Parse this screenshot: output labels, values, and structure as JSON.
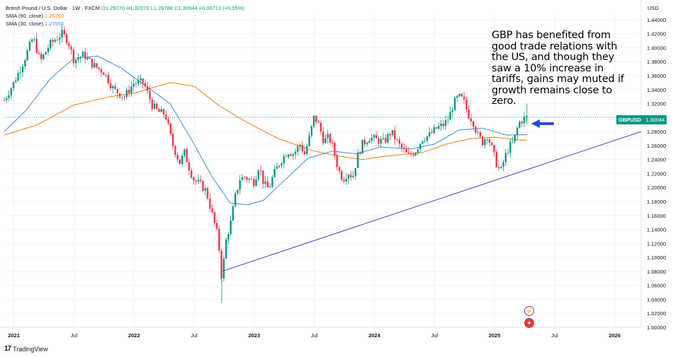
{
  "legend": {
    "title": "British Pound / U.S. Dollar · 1W · FXCM",
    "ohlc": "O1.29270  H1.32070  L1.28788  C1.30044  +0.00713 (+0.55%)",
    "sma90_label": "SMA (90, close)",
    "sma90_value": "1.26760",
    "sma30_label": "SMA (30, close)",
    "sma30_value": "1.27556"
  },
  "currency_label": "USD",
  "annotation": "GBP has benefited from good trade relations with the US, and though they saw a 10% increase in tariffs, gains may muted if growth remains close to zero.",
  "price_tag": {
    "symbol": "GBPUSD",
    "value": "1.30044"
  },
  "branding": "TradingView",
  "colors": {
    "up": "#089981",
    "down": "#f23645",
    "sma90": "#f57c00",
    "sma30": "#3d8fd1",
    "trendline": "#3f3fd6",
    "arrow": "#1f4fe0",
    "grid": "#f0f3fa",
    "axis_text": "#131722"
  },
  "icons": [
    "lightning-icon",
    "us-flag-icon",
    "tradingview-logo-icon"
  ],
  "chart_data": {
    "type": "candlestick",
    "symbol": "GBPUSD",
    "interval": "1W",
    "y_ticks": [
      "1.00000",
      "1.02000",
      "1.04000",
      "1.06000",
      "1.08000",
      "1.10000",
      "1.12000",
      "1.14000",
      "1.16000",
      "1.18000",
      "1.20000",
      "1.22000",
      "1.24000",
      "1.26000",
      "1.28000",
      "1.30000",
      "1.32000",
      "1.34000",
      "1.36000",
      "1.38000",
      "1.40000",
      "1.42000",
      "1.44000"
    ],
    "x_ticks": [
      "2021",
      "Jul",
      "2022",
      "Jul",
      "2023",
      "Jul",
      "2024",
      "Jul",
      "2025",
      "Jul",
      "2026"
    ],
    "ylim": [
      1.0,
      1.45
    ],
    "xlim": [
      2020.92,
      2026.22
    ],
    "grid": true,
    "price_path": [
      [
        2020.92,
        1.325
      ],
      [
        2021.0,
        1.35
      ],
      [
        2021.08,
        1.38
      ],
      [
        2021.16,
        1.415
      ],
      [
        2021.22,
        1.38
      ],
      [
        2021.3,
        1.405
      ],
      [
        2021.4,
        1.42
      ],
      [
        2021.45,
        1.41
      ],
      [
        2021.5,
        1.382
      ],
      [
        2021.58,
        1.39
      ],
      [
        2021.66,
        1.375
      ],
      [
        2021.75,
        1.365
      ],
      [
        2021.83,
        1.34
      ],
      [
        2021.92,
        1.33
      ],
      [
        2022.0,
        1.35
      ],
      [
        2022.08,
        1.35
      ],
      [
        2022.15,
        1.318
      ],
      [
        2022.2,
        1.308
      ],
      [
        2022.26,
        1.305
      ],
      [
        2022.32,
        1.262
      ],
      [
        2022.38,
        1.235
      ],
      [
        2022.42,
        1.25
      ],
      [
        2022.46,
        1.228
      ],
      [
        2022.5,
        1.21
      ],
      [
        2022.55,
        1.205
      ],
      [
        2022.6,
        1.195
      ],
      [
        2022.66,
        1.155
      ],
      [
        2022.7,
        1.128
      ],
      [
        2022.73,
        1.07
      ],
      [
        2022.77,
        1.13
      ],
      [
        2022.8,
        1.145
      ],
      [
        2022.84,
        1.185
      ],
      [
        2022.88,
        1.212
      ],
      [
        2022.92,
        1.215
      ],
      [
        2023.0,
        1.208
      ],
      [
        2023.04,
        1.232
      ],
      [
        2023.08,
        1.205
      ],
      [
        2023.12,
        1.198
      ],
      [
        2023.16,
        1.218
      ],
      [
        2023.22,
        1.238
      ],
      [
        2023.28,
        1.252
      ],
      [
        2023.33,
        1.248
      ],
      [
        2023.38,
        1.262
      ],
      [
        2023.42,
        1.248
      ],
      [
        2023.46,
        1.272
      ],
      [
        2023.5,
        1.302
      ],
      [
        2023.54,
        1.288
      ],
      [
        2023.58,
        1.266
      ],
      [
        2023.62,
        1.272
      ],
      [
        2023.66,
        1.255
      ],
      [
        2023.7,
        1.225
      ],
      [
        2023.74,
        1.212
      ],
      [
        2023.78,
        1.222
      ],
      [
        2023.82,
        1.215
      ],
      [
        2023.86,
        1.245
      ],
      [
        2023.9,
        1.262
      ],
      [
        2023.96,
        1.272
      ],
      [
        2024.02,
        1.268
      ],
      [
        2024.08,
        1.265
      ],
      [
        2024.14,
        1.28
      ],
      [
        2024.2,
        1.262
      ],
      [
        2024.28,
        1.245
      ],
      [
        2024.34,
        1.252
      ],
      [
        2024.4,
        1.27
      ],
      [
        2024.46,
        1.275
      ],
      [
        2024.52,
        1.285
      ],
      [
        2024.58,
        1.29
      ],
      [
        2024.62,
        1.3
      ],
      [
        2024.66,
        1.32
      ],
      [
        2024.7,
        1.33
      ],
      [
        2024.74,
        1.325
      ],
      [
        2024.78,
        1.305
      ],
      [
        2024.82,
        1.295
      ],
      [
        2024.86,
        1.275
      ],
      [
        2024.9,
        1.265
      ],
      [
        2024.94,
        1.275
      ],
      [
        2024.98,
        1.255
      ],
      [
        2025.02,
        1.232
      ],
      [
        2025.05,
        1.222
      ],
      [
        2025.08,
        1.24
      ],
      [
        2025.12,
        1.258
      ],
      [
        2025.16,
        1.265
      ],
      [
        2025.2,
        1.292
      ],
      [
        2025.24,
        1.298
      ],
      [
        2025.27,
        1.3
      ]
    ],
    "sma90_path": [
      [
        2020.92,
        1.275
      ],
      [
        2021.2,
        1.29
      ],
      [
        2021.5,
        1.318
      ],
      [
        2021.8,
        1.33
      ],
      [
        2022.0,
        1.335
      ],
      [
        2022.3,
        1.35
      ],
      [
        2022.5,
        1.345
      ],
      [
        2022.7,
        1.318
      ],
      [
        2022.92,
        1.295
      ],
      [
        2023.2,
        1.27
      ],
      [
        2023.5,
        1.252
      ],
      [
        2023.7,
        1.245
      ],
      [
        2023.9,
        1.24
      ],
      [
        2024.1,
        1.245
      ],
      [
        2024.4,
        1.25
      ],
      [
        2024.6,
        1.262
      ],
      [
        2024.8,
        1.27
      ],
      [
        2025.0,
        1.272
      ],
      [
        2025.2,
        1.268
      ],
      [
        2025.27,
        1.2676
      ]
    ],
    "sma30_path": [
      [
        2020.92,
        1.28
      ],
      [
        2021.1,
        1.31
      ],
      [
        2021.3,
        1.355
      ],
      [
        2021.5,
        1.385
      ],
      [
        2021.7,
        1.388
      ],
      [
        2021.9,
        1.37
      ],
      [
        2022.1,
        1.345
      ],
      [
        2022.3,
        1.32
      ],
      [
        2022.5,
        1.262
      ],
      [
        2022.65,
        1.215
      ],
      [
        2022.8,
        1.178
      ],
      [
        2022.95,
        1.175
      ],
      [
        2023.08,
        1.182
      ],
      [
        2023.25,
        1.21
      ],
      [
        2023.45,
        1.242
      ],
      [
        2023.65,
        1.252
      ],
      [
        2023.85,
        1.248
      ],
      [
        2024.05,
        1.258
      ],
      [
        2024.3,
        1.255
      ],
      [
        2024.5,
        1.262
      ],
      [
        2024.7,
        1.282
      ],
      [
        2024.9,
        1.285
      ],
      [
        2025.1,
        1.275
      ],
      [
        2025.27,
        1.2756
      ]
    ],
    "trendline": [
      [
        2022.73,
        1.08
      ],
      [
        2026.22,
        1.28
      ]
    ],
    "last_price": 1.30044
  }
}
